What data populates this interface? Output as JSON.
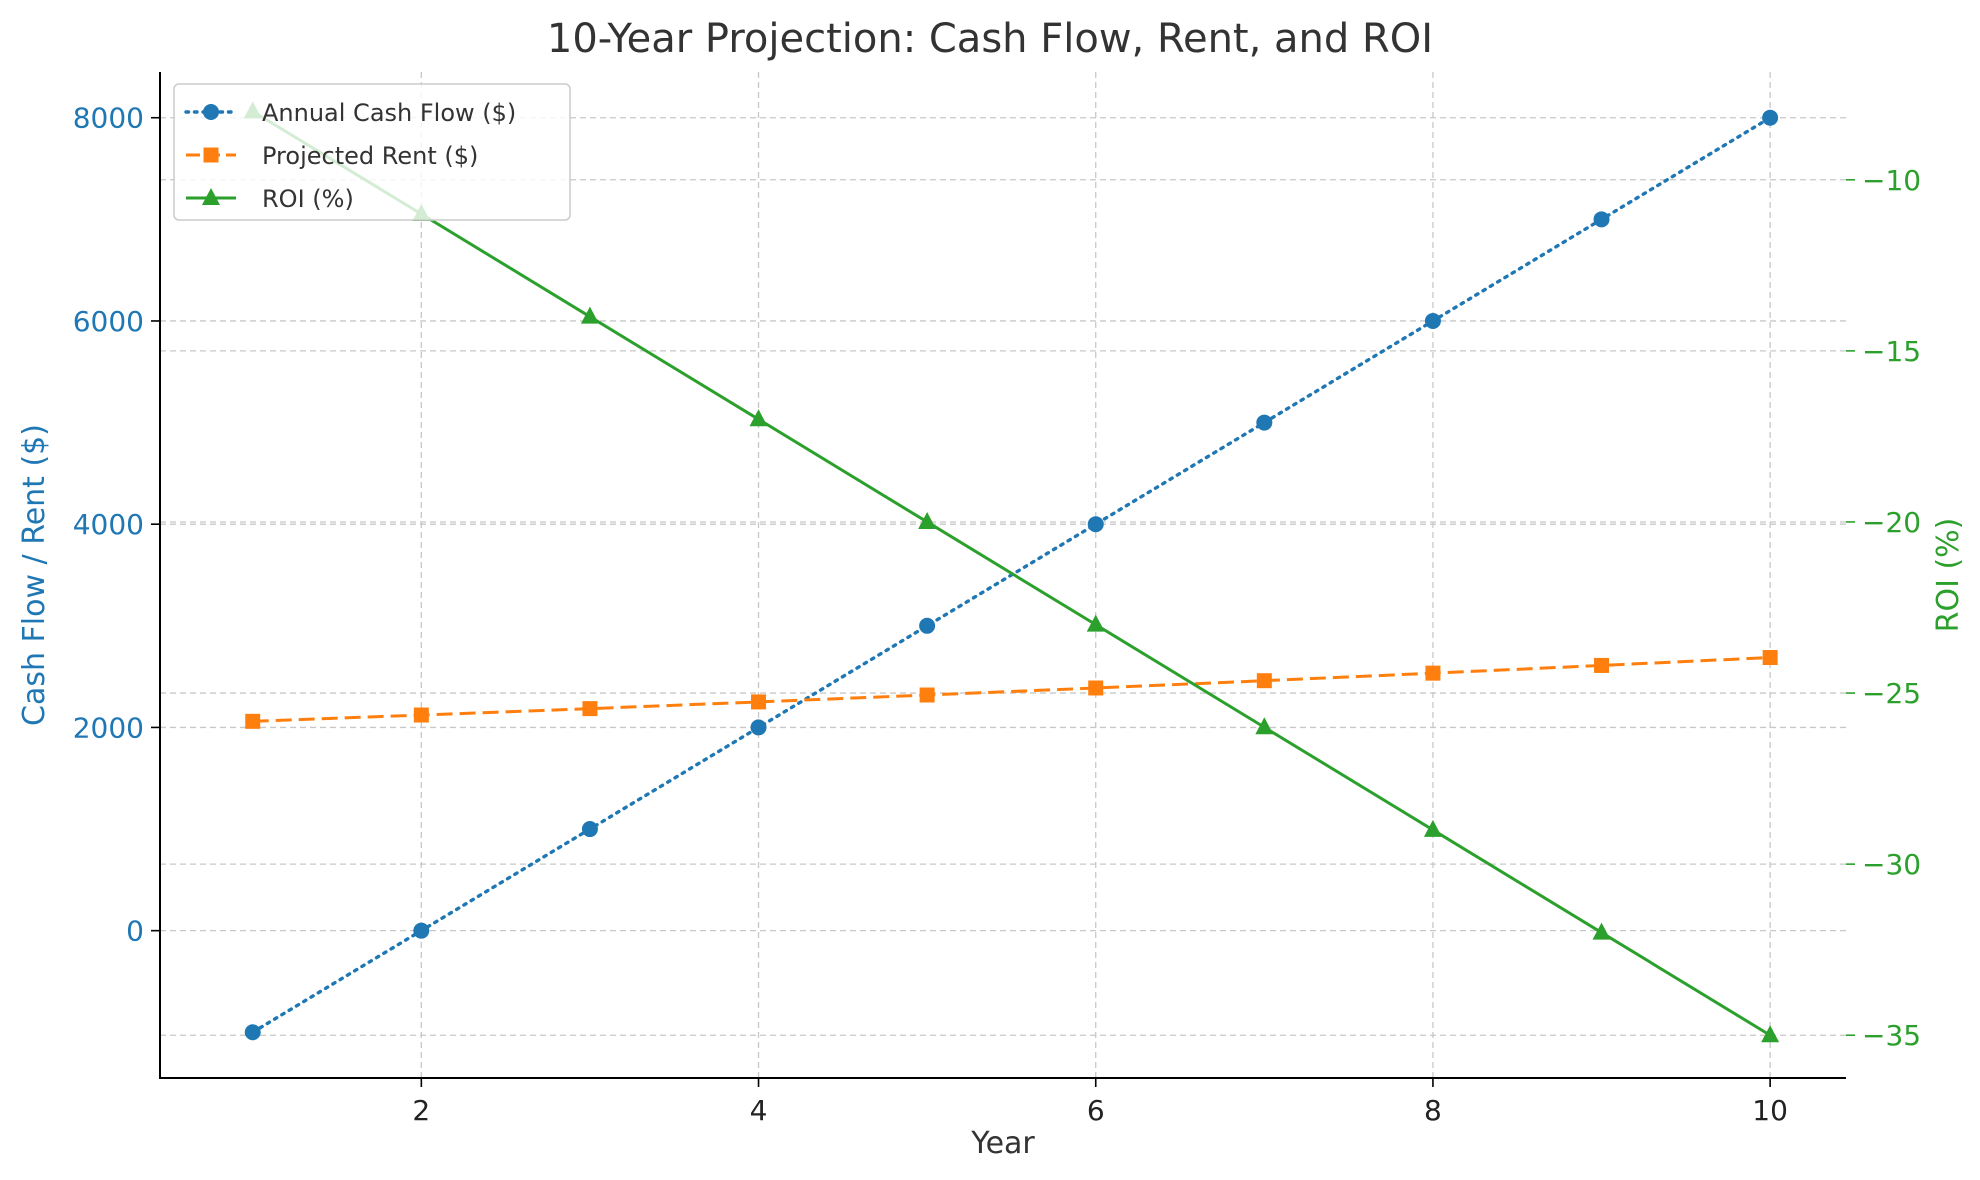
{
  "chart_data": {
    "type": "line",
    "title": "10-Year Projection: Cash Flow, Rent, and ROI",
    "xlabel": "Year",
    "ylabel_left": "Cash Flow / Rent ($)",
    "ylabel_right": "ROI (%)",
    "x": [
      1,
      2,
      3,
      4,
      5,
      6,
      7,
      8,
      9,
      10
    ],
    "xlim": [
      0.45,
      10.45
    ],
    "ylim_left": [
      -1450,
      8450
    ],
    "ylim_right": [
      -36.25,
      -6.85
    ],
    "x_ticks": [
      2,
      4,
      6,
      8,
      10
    ],
    "y_ticks_left": [
      0,
      2000,
      4000,
      6000,
      8000
    ],
    "y_ticks_right": [
      -35,
      -30,
      -25,
      -20,
      -15,
      -10
    ],
    "grid": true,
    "legend_position": "top-left",
    "series": [
      {
        "name": "Annual Cash Flow ($)",
        "axis": "left",
        "color": "#1f77b4",
        "style": "dotted",
        "marker": "circle",
        "values": [
          -1000,
          0,
          1000,
          2000,
          3000,
          4000,
          5000,
          6000,
          7000,
          8000
        ]
      },
      {
        "name": "Projected Rent ($)",
        "axis": "left",
        "color": "#ff7f0e",
        "style": "dashed",
        "marker": "square",
        "values": [
          2060,
          2122,
          2185,
          2251,
          2319,
          2388,
          2460,
          2534,
          2610,
          2688
        ]
      },
      {
        "name": "ROI (%)",
        "axis": "right",
        "color": "#2ca02c",
        "style": "solid",
        "marker": "triangle",
        "values": [
          -8,
          -11,
          -14,
          -17,
          -20,
          -23,
          -26,
          -29,
          -32,
          -35
        ]
      }
    ],
    "colors": {
      "left_axis": "#1f77b4",
      "right_axis": "#2ca02c",
      "text": "#333333"
    }
  }
}
